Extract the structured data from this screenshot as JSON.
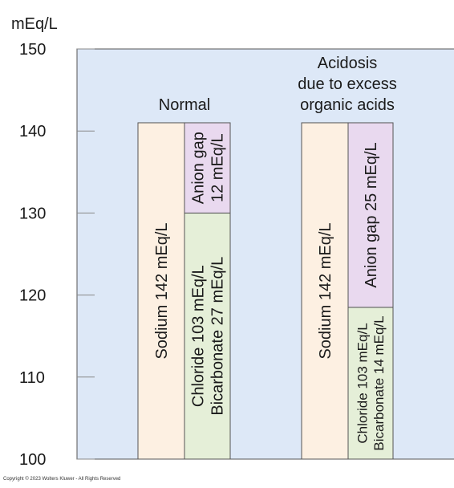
{
  "chart_data": {
    "type": "bar",
    "ylabel": "mEq/L",
    "ylim": [
      100,
      150
    ],
    "yticks": [
      100,
      110,
      120,
      130,
      140,
      150
    ],
    "grid": false,
    "colors": {
      "plot_background": "#dde8f7",
      "plot_border": "#555555",
      "sodium": "#fdf0e2",
      "anion_gap": "#e9d9ef",
      "chloride_bicarbonate": "#e5efd8",
      "tick_color": "#888888",
      "text": "#1a1a1a"
    },
    "groups": [
      {
        "title_lines": [
          "Normal"
        ],
        "columns": [
          {
            "segments": [
              {
                "key": "sodium",
                "from": 100,
                "to": 141,
                "label_lines": [
                  "Sodium 142 mEq/L"
                ]
              }
            ]
          },
          {
            "segments": [
              {
                "key": "chloride_bicarbonate",
                "from": 100,
                "to": 130,
                "label_lines": [
                  "Chloride 103 mEq/L",
                  "Bicarbonate 27 mEq/L"
                ]
              },
              {
                "key": "anion_gap",
                "from": 130,
                "to": 141,
                "label_lines": [
                  "Anion gap",
                  "12 mEq/L"
                ]
              }
            ]
          }
        ]
      },
      {
        "title_lines": [
          "Acidosis",
          "due to excess",
          "organic acids"
        ],
        "columns": [
          {
            "segments": [
              {
                "key": "sodium",
                "from": 100,
                "to": 141,
                "label_lines": [
                  "Sodium 142 mEq/L"
                ]
              }
            ]
          },
          {
            "segments": [
              {
                "key": "chloride_bicarbonate",
                "from": 100,
                "to": 118.5,
                "label_lines": [
                  "Chloride 103 mEq/L",
                  "Bicarbonate 14 mEq/L"
                ]
              },
              {
                "key": "anion_gap",
                "from": 118.5,
                "to": 141,
                "label_lines": [
                  "Anion gap 25 mEq/L"
                ]
              }
            ]
          }
        ]
      }
    ]
  },
  "copyright": "Copyright © 2023 Wolters Kluwer - All Rights Reserved"
}
